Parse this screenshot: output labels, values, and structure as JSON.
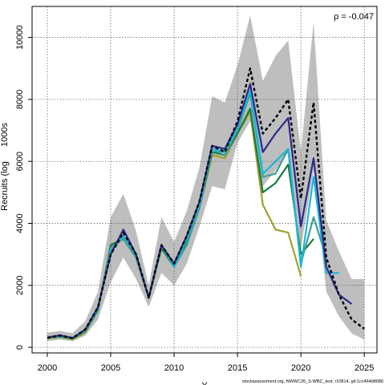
{
  "chart_data": {
    "type": "line",
    "ylabel": "Recruits (log",
    "ylabel_suffix": "1000s",
    "xlabel": "Y",
    "annotation": "ρ = -0.047",
    "credit": "stockassessment.org, NWWC26_S-WBC_test, r10814, git:1cc464b8086",
    "xlim": [
      1998.8,
      2026.0
    ],
    "ylim": [
      -180,
      11000
    ],
    "x_ticks": [
      2000,
      2005,
      2010,
      2015,
      2020,
      2025
    ],
    "y_ticks": [
      0,
      2000,
      4000,
      6000,
      8000,
      10000
    ],
    "grid": true,
    "confidence_band": {
      "color": "#bebebe",
      "x": [
        2000,
        2001,
        2002,
        2003,
        2004,
        2005,
        2006,
        2007,
        2008,
        2009,
        2010,
        2011,
        2012,
        2013,
        2014,
        2015,
        2016,
        2017,
        2018,
        2019,
        2020,
        2021,
        2022,
        2023,
        2024,
        2025
      ],
      "lower": [
        200,
        250,
        200,
        380,
        900,
        2100,
        2900,
        2200,
        1300,
        2400,
        2000,
        2700,
        3900,
        5200,
        5100,
        6600,
        7300,
        5200,
        5700,
        6300,
        3200,
        5700,
        1800,
        1000,
        450,
        250
      ],
      "upper": [
        470,
        530,
        460,
        850,
        1800,
        4200,
        4950,
        3750,
        2000,
        4200,
        3400,
        4400,
        5800,
        8100,
        7900,
        9100,
        10700,
        8600,
        9400,
        9900,
        6300,
        10500,
        4100,
        3100,
        2200,
        2200
      ]
    },
    "series": [
      {
        "color": "#000000",
        "dashed": true,
        "x": [
          2000,
          2001,
          2002,
          2003,
          2004,
          2005,
          2006,
          2007,
          2008,
          2009,
          2010,
          2011,
          2012,
          2013,
          2014,
          2015,
          2016,
          2017,
          2018,
          2019,
          2020,
          2021,
          2022,
          2023,
          2024,
          2025
        ],
        "values": [
          310,
          380,
          300,
          580,
          1300,
          3000,
          3700,
          3000,
          1600,
          3300,
          2700,
          3600,
          4700,
          6500,
          6300,
          7300,
          9000,
          6900,
          7400,
          8000,
          4800,
          7900,
          2900,
          1700,
          900,
          600
        ]
      },
      {
        "color": "#2b2b8c",
        "x": [
          2000,
          2001,
          2002,
          2003,
          2004,
          2005,
          2006,
          2007,
          2008,
          2009,
          2010,
          2011,
          2012,
          2013,
          2014,
          2015,
          2016,
          2017,
          2018,
          2019,
          2020,
          2021,
          2022,
          2023,
          2024
        ],
        "values": [
          320,
          390,
          300,
          580,
          1300,
          3000,
          3800,
          3000,
          1600,
          3300,
          2700,
          3600,
          4700,
          6500,
          6400,
          7200,
          8500,
          6300,
          6900,
          7400,
          3900,
          6100,
          2600,
          1700,
          1400
        ]
      },
      {
        "color": "#1ab7d9",
        "x": [
          2000,
          2001,
          2002,
          2003,
          2004,
          2005,
          2006,
          2007,
          2008,
          2009,
          2010,
          2011,
          2012,
          2013,
          2014,
          2015,
          2016,
          2017,
          2018,
          2019,
          2020,
          2021,
          2022,
          2023
        ],
        "values": [
          310,
          370,
          300,
          560,
          1250,
          3100,
          3600,
          3000,
          1600,
          3300,
          2600,
          3500,
          4600,
          6400,
          6300,
          7100,
          8300,
          5600,
          6000,
          6400,
          2600,
          5500,
          2400,
          2400
        ]
      },
      {
        "color": "#3ea094",
        "x": [
          2000,
          2001,
          2002,
          2003,
          2004,
          2005,
          2006,
          2007,
          2008,
          2009,
          2010,
          2011,
          2012,
          2013,
          2014,
          2015,
          2016,
          2017,
          2018,
          2019,
          2020,
          2021,
          2022
        ],
        "values": [
          300,
          360,
          290,
          540,
          1250,
          3200,
          3500,
          2900,
          1600,
          3300,
          2600,
          3300,
          4500,
          6400,
          6200,
          7000,
          8200,
          5500,
          5600,
          6400,
          2700,
          4200,
          2900
        ]
      },
      {
        "color": "#1a7a3a",
        "x": [
          2000,
          2001,
          2002,
          2003,
          2004,
          2005,
          2006,
          2007,
          2008,
          2009,
          2010,
          2011,
          2012,
          2013,
          2014,
          2015,
          2016,
          2017,
          2018,
          2019,
          2020,
          2021
        ],
        "values": [
          300,
          350,
          280,
          520,
          1200,
          3300,
          3500,
          2900,
          1600,
          3200,
          2600,
          3400,
          4500,
          6300,
          6200,
          6900,
          7700,
          5000,
          5300,
          5900,
          3000,
          3500
        ]
      },
      {
        "color": "#a0a030",
        "x": [
          2000,
          2001,
          2002,
          2003,
          2004,
          2005,
          2006,
          2007,
          2008,
          2009,
          2010,
          2011,
          2012,
          2013,
          2014,
          2015,
          2016,
          2017,
          2018,
          2019,
          2020
        ],
        "values": [
          280,
          330,
          260,
          480,
          1200,
          3300,
          3500,
          2900,
          1600,
          3200,
          2600,
          3400,
          4500,
          6200,
          6100,
          6900,
          7600,
          4600,
          3800,
          3700,
          2300
        ]
      }
    ]
  }
}
